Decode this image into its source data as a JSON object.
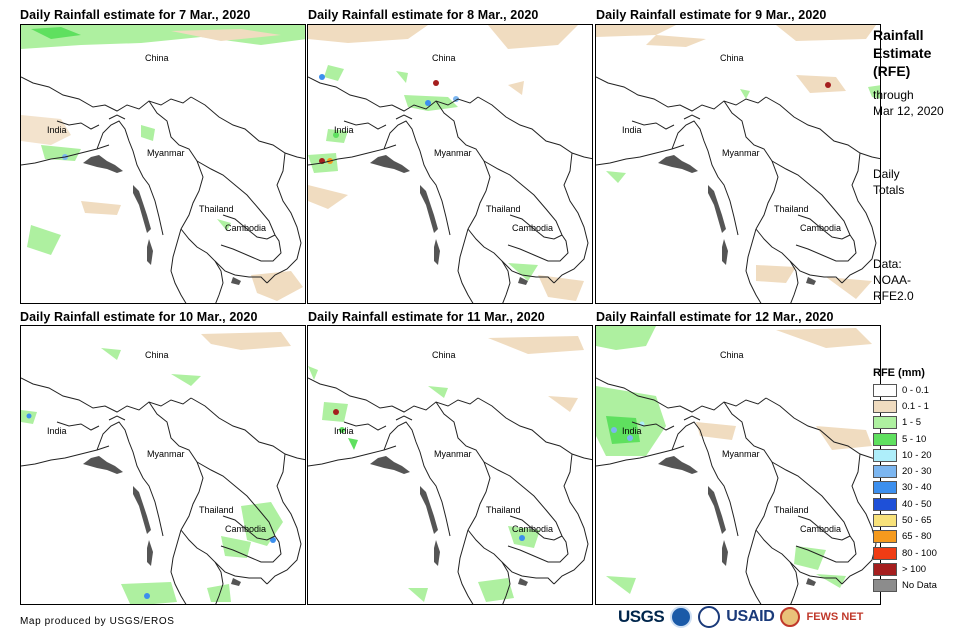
{
  "panels": [
    {
      "title": "Daily Rainfall estimate for 7 Mar., 2020"
    },
    {
      "title": "Daily Rainfall estimate for 8 Mar., 2020"
    },
    {
      "title": "Daily Rainfall estimate for 9 Mar., 2020"
    },
    {
      "title": "Daily Rainfall estimate for 10 Mar., 2020"
    },
    {
      "title": "Daily Rainfall estimate for 11 Mar., 2020"
    },
    {
      "title": "Daily Rainfall estimate for 12 Mar., 2020"
    }
  ],
  "map_labels": {
    "china": "China",
    "india": "India",
    "myanmar": "Myanmar",
    "thailand": "Thailand",
    "cambodia": "Cambodia"
  },
  "side": {
    "title_line1": "Rainfall",
    "title_line2": "Estimate",
    "title_line3": "(RFE)",
    "through": "through",
    "date": "Mar 12, 2020",
    "daily": "Daily",
    "totals": "Totals",
    "data_label": "Data:",
    "source1": "NOAA-",
    "source2": "RFE2.0"
  },
  "legend": {
    "title": "RFE (mm)",
    "items": [
      {
        "label": "0 - 0.1",
        "color": "#ffffff"
      },
      {
        "label": "0.1 - 1",
        "color": "#f0dcc0"
      },
      {
        "label": "1 - 5",
        "color": "#aef0a0"
      },
      {
        "label": "5 - 10",
        "color": "#5fe05f"
      },
      {
        "label": "10 - 20",
        "color": "#aeeefa"
      },
      {
        "label": "20 - 30",
        "color": "#7cb6f0"
      },
      {
        "label": "30 - 40",
        "color": "#3c8fee"
      },
      {
        "label": "40 - 50",
        "color": "#1e50d8"
      },
      {
        "label": "50 - 65",
        "color": "#f8e27a"
      },
      {
        "label": "65 - 80",
        "color": "#f59a1e"
      },
      {
        "label": "80 - 100",
        "color": "#f03c14"
      },
      {
        "label": "> 100",
        "color": "#a51e1e"
      },
      {
        "label": "No Data",
        "color": "#8c8c8c"
      }
    ]
  },
  "credit": "Map produced by USGS/EROS",
  "logos": {
    "usgs": "USGS",
    "usaid": "USAID",
    "fews": "FEWS NET"
  }
}
